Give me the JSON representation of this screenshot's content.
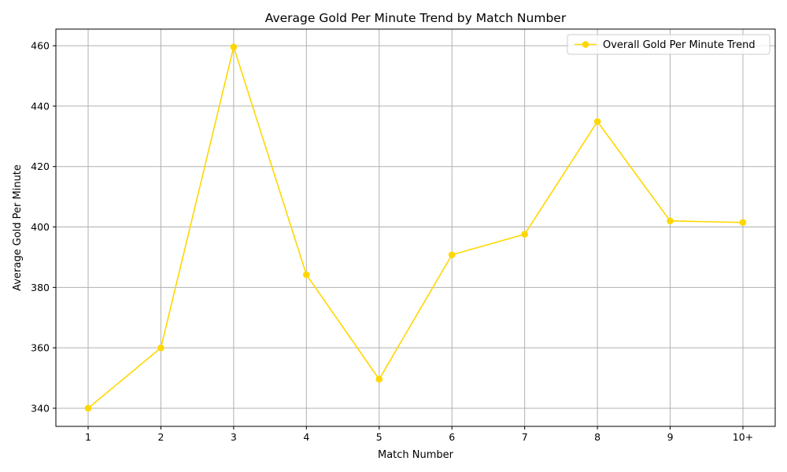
{
  "chart_data": {
    "type": "line",
    "title": "Average Gold Per Minute Trend by Match Number",
    "xlabel": "Match Number",
    "ylabel": "Average Gold Per Minute",
    "categories": [
      "1",
      "2",
      "3",
      "4",
      "5",
      "6",
      "7",
      "8",
      "9",
      "10+"
    ],
    "series": [
      {
        "name": "Overall Gold Per Minute Trend",
        "color": "#FFD700",
        "marker": "circle",
        "values": [
          340,
          360,
          459.6,
          384.2,
          349.6,
          390.8,
          397.6,
          434.9,
          402,
          401.5
        ]
      }
    ],
    "ylim": [
      334,
      465.5
    ],
    "yticks": [
      340,
      360,
      380,
      400,
      420,
      440,
      460
    ],
    "grid": true,
    "legend_position": "top-right"
  }
}
